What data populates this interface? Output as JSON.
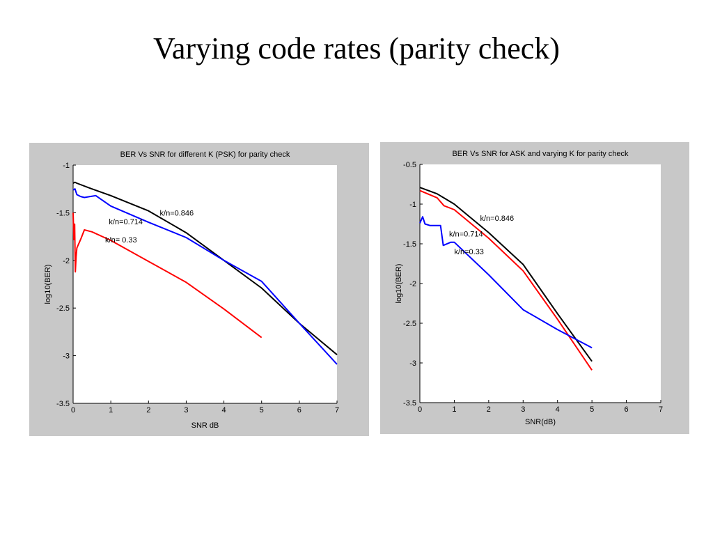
{
  "slide": {
    "title": "Varying code rates (parity check)"
  },
  "chart_data": [
    {
      "type": "line",
      "title": "BER Vs SNR for different K (PSK) for parity check",
      "xlabel": "SNR dB",
      "ylabel": "log10(BER)",
      "xlim": [
        0,
        7
      ],
      "ylim": [
        -3.5,
        -1
      ],
      "xticks": [
        "0",
        "1",
        "2",
        "3",
        "4",
        "5",
        "6",
        "7"
      ],
      "yticks": [
        "-1",
        "-1.5",
        "-2",
        "-2.5",
        "-3",
        "-3.5"
      ],
      "grid": false,
      "colors": {
        "0.846": "#000000",
        "0.714": "#0000ff",
        "0.33": "#ff0000"
      },
      "series": [
        {
          "name": "k/n=0.846",
          "color": "#000000",
          "x": [
            0,
            0.05,
            0.1,
            0.5,
            1,
            2,
            3,
            4,
            5,
            6,
            7
          ],
          "y": [
            -1.19,
            -1.18,
            -1.19,
            -1.25,
            -1.32,
            -1.48,
            -1.71,
            -2.0,
            -2.29,
            -2.66,
            -2.99
          ]
        },
        {
          "name": "k/n=0.714",
          "color": "#0000ff",
          "x": [
            0,
            0.05,
            0.1,
            0.2,
            0.3,
            0.45,
            0.6,
            1,
            2,
            3,
            4,
            5,
            6,
            7
          ],
          "y": [
            -1.26,
            -1.25,
            -1.31,
            -1.33,
            -1.34,
            -1.33,
            -1.32,
            -1.43,
            -1.6,
            -1.76,
            -2.0,
            -2.22,
            -2.66,
            -3.09
          ]
        },
        {
          "name": "k/n= 0.33",
          "color": "#ff0000",
          "x": [
            0,
            0.02,
            0.04,
            0.06,
            0.08,
            0.1,
            0.2,
            0.3,
            0.5,
            1,
            2,
            3,
            4,
            5
          ],
          "y": [
            -1.5,
            -1.78,
            -1.62,
            -2.12,
            -1.96,
            -1.87,
            -1.78,
            -1.68,
            -1.7,
            -1.79,
            -2.01,
            -2.23,
            -2.51,
            -2.81
          ]
        }
      ],
      "annotations": [
        {
          "text": "k/n=0.846",
          "x": 2.3,
          "y": -1.53
        },
        {
          "text": "k/n=0.714",
          "x": 0.95,
          "y": -1.62
        },
        {
          "text": "k/n= 0.33",
          "x": 0.85,
          "y": -1.81
        }
      ]
    },
    {
      "type": "line",
      "title": "BER Vs SNR for ASK and varying K for parity check",
      "xlabel": "SNR(dB)",
      "ylabel": "log10(BER)",
      "xlim": [
        0,
        7
      ],
      "ylim": [
        -3.5,
        -0.5
      ],
      "xticks": [
        "0",
        "1",
        "2",
        "3",
        "4",
        "5",
        "6",
        "7"
      ],
      "yticks": [
        "-0.5",
        "-1",
        "-1.5",
        "-2",
        "-2.5",
        "-3",
        "-3.5"
      ],
      "grid": false,
      "series": [
        {
          "name": "k/n=0.846",
          "color": "#000000",
          "x": [
            0,
            0.5,
            1,
            2,
            3,
            4,
            5
          ],
          "y": [
            -0.79,
            -0.87,
            -1.0,
            -1.36,
            -1.76,
            -2.38,
            -2.98
          ]
        },
        {
          "name": "k/n=0.714",
          "color": "#ff0000",
          "x": [
            0,
            0.5,
            0.7,
            1,
            2,
            3,
            4,
            5
          ],
          "y": [
            -0.83,
            -0.92,
            -1.02,
            -1.07,
            -1.43,
            -1.84,
            -2.45,
            -3.09
          ]
        },
        {
          "name": "k/n=0.33",
          "color": "#0000ff",
          "x": [
            0,
            0.08,
            0.15,
            0.3,
            0.6,
            0.68,
            0.9,
            1,
            2,
            3,
            4,
            5
          ],
          "y": [
            -1.24,
            -1.16,
            -1.25,
            -1.27,
            -1.27,
            -1.52,
            -1.48,
            -1.48,
            -1.89,
            -2.33,
            -2.58,
            -2.81
          ]
        }
      ],
      "annotations": [
        {
          "text": "k/n=0.846",
          "x": 1.75,
          "y": -1.21
        },
        {
          "text": "k/n=0.714",
          "x": 0.85,
          "y": -1.41
        },
        {
          "text": "k/n=0.33",
          "x": 1.0,
          "y": -1.63
        }
      ]
    }
  ]
}
